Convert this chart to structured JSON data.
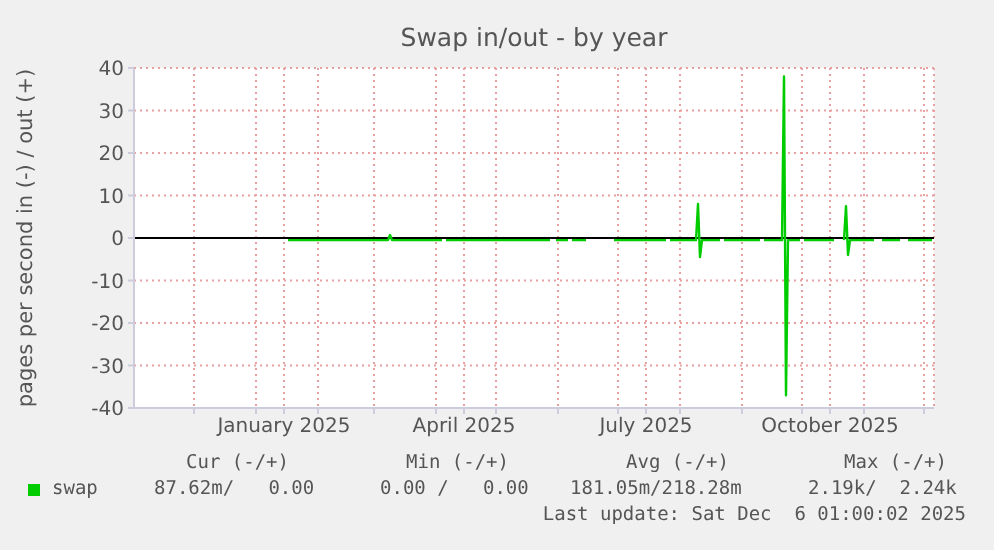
{
  "chart_data": {
    "type": "line",
    "title": "Swap in/out - by year",
    "ylabel": "pages per second in (-) / out (+)",
    "xlim": [
      "2024-11-01",
      "2025-12-06"
    ],
    "xticks": [
      {
        "value": "2024-12-01",
        "label": null
      },
      {
        "value": "2025-01-01",
        "label": null
      },
      {
        "value": "2025-01-15",
        "label": "January 2025"
      },
      {
        "value": "2025-02-01",
        "label": null
      },
      {
        "value": "2025-03-01",
        "label": null
      },
      {
        "value": "2025-04-01",
        "label": null
      },
      {
        "value": "2025-04-15",
        "label": "April 2025"
      },
      {
        "value": "2025-05-01",
        "label": null
      },
      {
        "value": "2025-06-01",
        "label": null
      },
      {
        "value": "2025-07-01",
        "label": null
      },
      {
        "value": "2025-07-15",
        "label": "July 2025"
      },
      {
        "value": "2025-08-01",
        "label": null
      },
      {
        "value": "2025-09-01",
        "label": null
      },
      {
        "value": "2025-10-01",
        "label": null
      },
      {
        "value": "2025-10-15",
        "label": "October 2025"
      },
      {
        "value": "2025-11-01",
        "label": null
      },
      {
        "value": "2025-12-01",
        "label": null
      }
    ],
    "ylim": [
      -40,
      40
    ],
    "yticks": [
      -40,
      -30,
      -20,
      -10,
      0,
      10,
      20,
      30,
      40
    ],
    "grid": true,
    "legend": "bottom",
    "series": [
      {
        "name": "swap",
        "color": "#00cc00",
        "x": [
          "2025-01-17",
          "2025-03-08",
          "2025-03-09",
          "2025-03-10",
          "2025-04-04",
          "2025-04-05",
          "2025-04-06",
          "2025-05-28",
          "2025-05-29",
          "2025-05-31",
          "2025-06-06",
          "2025-06-07",
          "2025-06-08",
          "2025-06-15",
          "2025-06-16",
          "2025-06-29",
          "2025-07-25",
          "2025-07-26",
          "2025-07-27",
          "2025-08-09",
          "2025-08-10",
          "2025-08-11",
          "2025-08-12",
          "2025-08-21",
          "2025-08-22",
          "2025-08-23",
          "2025-09-10",
          "2025-09-11",
          "2025-09-12",
          "2025-09-21",
          "2025-09-22",
          "2025-09-23",
          "2025-09-24",
          "2025-09-30",
          "2025-10-01",
          "2025-10-02",
          "2025-10-17",
          "2025-10-18",
          "2025-10-22",
          "2025-10-23",
          "2025-10-24",
          "2025-10-25",
          "2025-11-06",
          "2025-11-07",
          "2025-11-10",
          "2025-11-19",
          "2025-11-20",
          "2025-11-23",
          "2025-12-05"
        ],
        "values": [
          -0.5,
          -0.5,
          0.7,
          -0.5,
          -0.5,
          null,
          -0.5,
          -0.5,
          null,
          -0.5,
          -0.5,
          null,
          -0.5,
          -0.5,
          null,
          -0.5,
          -0.5,
          null,
          -0.5,
          -0.5,
          8,
          -4.5,
          -0.5,
          -0.5,
          null,
          -0.5,
          -0.5,
          null,
          -0.5,
          -0.5,
          38,
          -37,
          -0.5,
          -0.5,
          null,
          -0.5,
          -0.5,
          null,
          -0.5,
          7.5,
          -4,
          -0.5,
          -0.5,
          null,
          -0.5,
          -0.5,
          null,
          -0.5,
          -0.5
        ]
      }
    ],
    "ref_lines": [
      {
        "axis": "y",
        "value": 0,
        "color": "#000000"
      }
    ],
    "annotations": [
      "Cur (-/+)",
      "Min (-/+)",
      "Avg (-/+)",
      "Max (-/+)",
      "87.62m/   0.00",
      "0.00 /   0.00",
      "181.05m/218.28m",
      "2.19k/  2.24k",
      "Last update: Sat Dec  6 01:00:02 2025"
    ]
  }
}
